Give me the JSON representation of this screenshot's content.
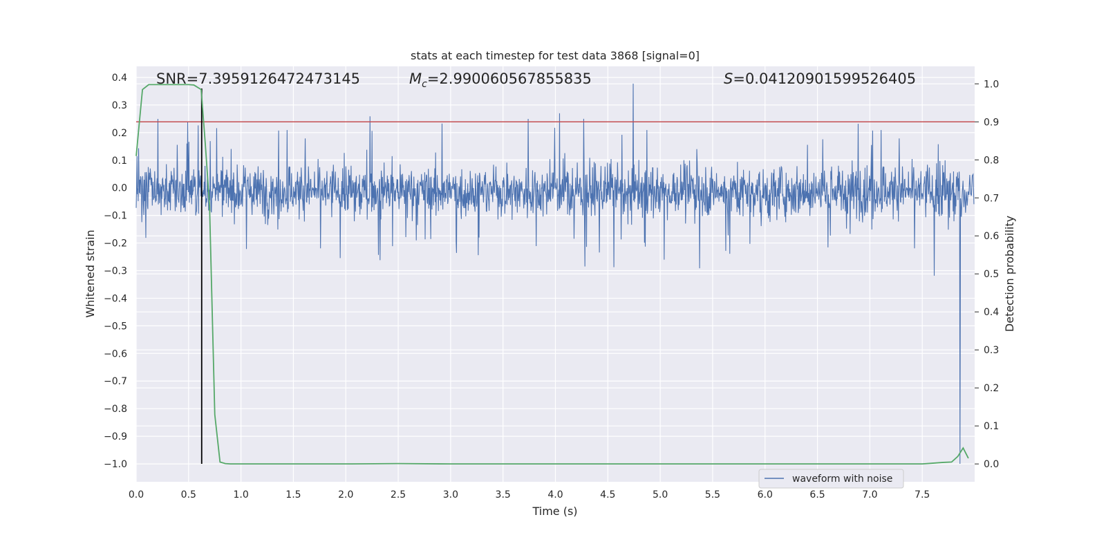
{
  "chart_data": {
    "type": "line",
    "title": "stats at each timestep for test data 3868 [signal=0]",
    "xlabel": "Time (s)",
    "ylabel_left": "Whitened strain",
    "ylabel_right": "Detection probability",
    "xlim": [
      0,
      8
    ],
    "ylim_left": [
      -1.065,
      0.44
    ],
    "ylim_right": [
      -0.047,
      1.046
    ],
    "x_ticks": [
      0.0,
      0.5,
      1.0,
      1.5,
      2.0,
      2.5,
      3.0,
      3.5,
      4.0,
      4.5,
      5.0,
      5.5,
      6.0,
      6.5,
      7.0,
      7.5
    ],
    "x_tick_labels": [
      "0.0",
      "0.5",
      "1.0",
      "1.5",
      "2.0",
      "2.5",
      "3.0",
      "3.5",
      "4.0",
      "4.5",
      "5.0",
      "5.5",
      "6.0",
      "6.5",
      "7.0",
      "7.5"
    ],
    "y_left_ticks": [
      0.4,
      0.3,
      0.2,
      0.1,
      0.0,
      -0.1,
      -0.2,
      -0.3,
      -0.4,
      -0.5,
      -0.6,
      -0.7,
      -0.8,
      -0.9,
      -1.0
    ],
    "y_left_tick_labels": [
      "0.4",
      "0.3",
      "0.2",
      "0.1",
      "0.0",
      "−0.1",
      "−0.2",
      "−0.3",
      "−0.4",
      "−0.5",
      "−0.6",
      "−0.7",
      "−0.8",
      "−0.9",
      "−1.0"
    ],
    "y_right_ticks": [
      1.0,
      0.9,
      0.8,
      0.7,
      0.6,
      0.5,
      0.4,
      0.3,
      0.2,
      0.1,
      0.0
    ],
    "y_right_tick_labels": [
      "1.0",
      "0.9",
      "0.8",
      "0.7",
      "0.6",
      "0.5",
      "0.4",
      "0.3",
      "0.2",
      "0.1",
      "0.0"
    ],
    "grid": true,
    "legend": {
      "entries": [
        "waveform with noise"
      ],
      "location": "lower-right"
    },
    "annotations": {
      "snr": "SNR=7.3959126472473145",
      "mc_symbol": "M",
      "mc_sub": "c",
      "mc_value": "=2.990060567855835",
      "s_symbol": "S",
      "s_value": "=0.04120901599526405"
    },
    "series": [
      {
        "name": "waveform with noise",
        "axis": "left",
        "color": "#4c72b0",
        "kind": "noise-waveform",
        "sample_count": 2048,
        "typical_range": [
          -0.17,
          0.15
        ],
        "peak_range": [
          -0.34,
          0.38
        ],
        "final_spike": {
          "x": 7.86,
          "y": -1.0
        }
      },
      {
        "axis": "right",
        "color": "#55a868",
        "x": [
          0.0,
          0.06,
          0.12,
          0.2,
          0.3,
          0.4,
          0.5,
          0.55,
          0.62,
          0.66,
          0.7,
          0.75,
          0.8,
          0.85,
          0.9,
          1.0,
          2.0,
          2.5,
          3.0,
          4.0,
          5.0,
          6.0,
          7.0,
          7.5,
          7.6,
          7.7,
          7.78,
          7.84,
          7.89,
          7.94
        ],
        "y": [
          0.81,
          0.985,
          0.998,
          0.998,
          0.998,
          0.998,
          0.998,
          0.997,
          0.985,
          0.84,
          0.68,
          0.13,
          0.005,
          0.001,
          0.0,
          0.0,
          0.0,
          0.001,
          0.0,
          0.0,
          0.0,
          0.0,
          0.0,
          0.0,
          0.002,
          0.004,
          0.005,
          0.02,
          0.042,
          0.015
        ]
      },
      {
        "axis": "right",
        "color": "#c44e52",
        "kind": "threshold",
        "y": 0.9
      },
      {
        "axis": "left",
        "color": "#000000",
        "kind": "vline",
        "x": 0.625,
        "y_range": [
          -1.0,
          0.36
        ]
      }
    ]
  }
}
